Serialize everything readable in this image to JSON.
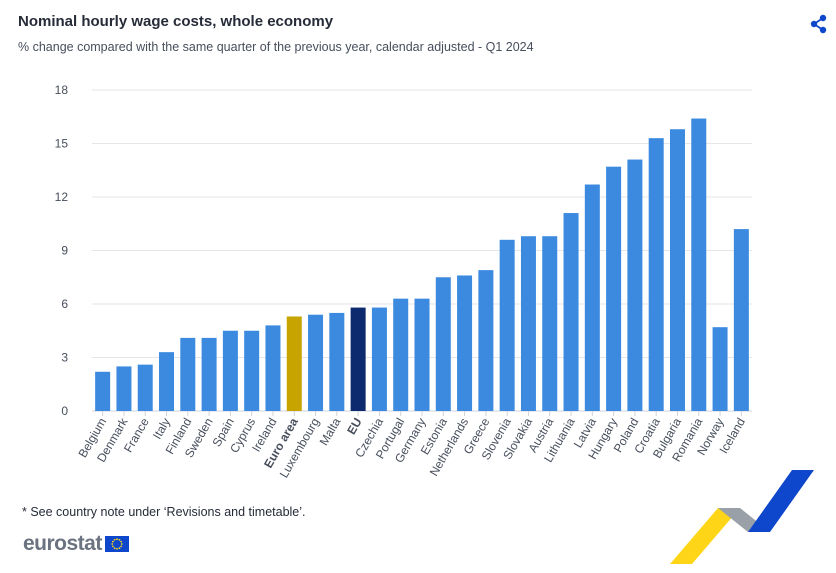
{
  "header": {
    "title": "Nominal hourly wage costs, whole economy",
    "subtitle": "% change compared with the same quarter of the previous year, calendar adjusted - Q1 2024",
    "share_icon": "share-icon"
  },
  "footer": {
    "note": "* See country note under ‘Revisions and timetable’.",
    "logo_text": "eurostat",
    "logo_flag_icon": "eu-flag-icon"
  },
  "colors": {
    "default_bar": "#3b8ae0",
    "euro_area_bar": "#c8a400",
    "eu_bar": "#0e2a6e",
    "grid": "#e6e6e6",
    "axis_text": "#474e5c"
  },
  "chart_data": {
    "type": "bar",
    "title": "Nominal hourly wage costs, whole economy",
    "subtitle": "% change compared with the same quarter of the previous year, calendar adjusted - Q1 2024",
    "categories": [
      "Belgium",
      "Denmark",
      "France",
      "Italy",
      "Finland",
      "Sweden",
      "Spain",
      "Cyprus",
      "Ireland",
      "Euro area",
      "Luxembourg",
      "Malta",
      "EU",
      "Czechia",
      "Portugal",
      "Germany",
      "Estonia",
      "Netherlands",
      "Greece",
      "Slovenia",
      "Slovakia",
      "Austria",
      "Lithuania",
      "Latvia",
      "Hungary",
      "Poland",
      "Croatia",
      "Bulgaria",
      "Romania",
      "Norway",
      "Iceland"
    ],
    "values": [
      2.2,
      2.5,
      2.6,
      3.3,
      4.1,
      4.1,
      4.5,
      4.5,
      4.8,
      5.3,
      5.4,
      5.5,
      5.8,
      5.8,
      6.3,
      6.3,
      7.5,
      7.6,
      7.9,
      9.6,
      9.8,
      9.8,
      11.1,
      12.7,
      13.7,
      14.1,
      15.3,
      15.8,
      16.4,
      4.7,
      10.2
    ],
    "highlight": {
      "Euro area": "#c8a400",
      "EU": "#0e2a6e"
    },
    "bold_categories": [
      "Euro area",
      "EU"
    ],
    "yticks": [
      0,
      3,
      6,
      9,
      12,
      15,
      18
    ],
    "ylim": [
      0,
      18
    ],
    "xlabel": "",
    "ylabel": "",
    "grid": true
  }
}
